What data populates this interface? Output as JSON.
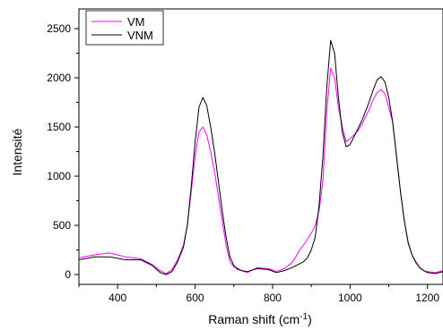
{
  "chart_data": {
    "type": "line",
    "title": "",
    "xlabel": "Raman shift (cm",
    "xlabel_sup": "-1",
    "xlabel_suffix": ")",
    "ylabel": "Intensité",
    "xlim": [
      300,
      1240
    ],
    "ylim": [
      -100,
      2700
    ],
    "xticks": [
      400,
      600,
      800,
      1000,
      1200
    ],
    "yticks": [
      0,
      500,
      1000,
      1500,
      2000,
      2500
    ],
    "legend_position": "top-left",
    "series": [
      {
        "name": "VM",
        "color": "#ff00ff",
        "x": [
          300,
          340,
          380,
          420,
          460,
          490,
          510,
          525,
          540,
          555,
          570,
          580,
          590,
          600,
          610,
          620,
          630,
          640,
          650,
          660,
          670,
          680,
          690,
          700,
          710,
          720,
          735,
          760,
          790,
          810,
          830,
          850,
          860,
          870,
          880,
          890,
          900,
          910,
          920,
          930,
          940,
          950,
          960,
          970,
          980,
          990,
          1000,
          1010,
          1020,
          1030,
          1040,
          1050,
          1060,
          1070,
          1080,
          1090,
          1100,
          1110,
          1120,
          1130,
          1140,
          1150,
          1160,
          1170,
          1180,
          1190,
          1200,
          1220,
          1240
        ],
        "y": [
          170,
          200,
          220,
          180,
          160,
          100,
          40,
          10,
          50,
          150,
          300,
          500,
          850,
          1200,
          1450,
          1500,
          1420,
          1250,
          1050,
          800,
          550,
          300,
          130,
          80,
          50,
          40,
          20,
          70,
          60,
          30,
          60,
          120,
          180,
          250,
          300,
          360,
          420,
          500,
          650,
          950,
          1650,
          2100,
          2000,
          1700,
          1500,
          1350,
          1380,
          1420,
          1460,
          1520,
          1600,
          1680,
          1780,
          1850,
          1880,
          1840,
          1700,
          1550,
          1200,
          850,
          550,
          320,
          200,
          130,
          70,
          40,
          30,
          20,
          40
        ]
      },
      {
        "name": "VNM",
        "color": "#000000",
        "x": [
          300,
          340,
          380,
          420,
          460,
          490,
          510,
          525,
          540,
          555,
          570,
          580,
          590,
          600,
          610,
          620,
          630,
          640,
          650,
          660,
          670,
          680,
          690,
          700,
          710,
          720,
          735,
          760,
          790,
          810,
          830,
          850,
          860,
          870,
          880,
          890,
          900,
          910,
          920,
          930,
          940,
          950,
          960,
          970,
          980,
          990,
          1000,
          1010,
          1020,
          1030,
          1040,
          1050,
          1060,
          1070,
          1080,
          1090,
          1100,
          1110,
          1120,
          1130,
          1140,
          1150,
          1160,
          1170,
          1180,
          1190,
          1200,
          1220,
          1240
        ],
        "y": [
          150,
          180,
          180,
          150,
          150,
          90,
          20,
          0,
          30,
          130,
          280,
          500,
          900,
          1350,
          1700,
          1800,
          1720,
          1500,
          1250,
          950,
          650,
          380,
          180,
          90,
          60,
          40,
          30,
          60,
          50,
          20,
          40,
          70,
          90,
          110,
          130,
          170,
          250,
          380,
          700,
          1200,
          1900,
          2380,
          2250,
          1800,
          1450,
          1300,
          1320,
          1400,
          1480,
          1560,
          1660,
          1760,
          1880,
          1980,
          2010,
          1960,
          1800,
          1550,
          1200,
          850,
          550,
          330,
          200,
          120,
          70,
          40,
          20,
          10,
          30
        ]
      }
    ]
  }
}
